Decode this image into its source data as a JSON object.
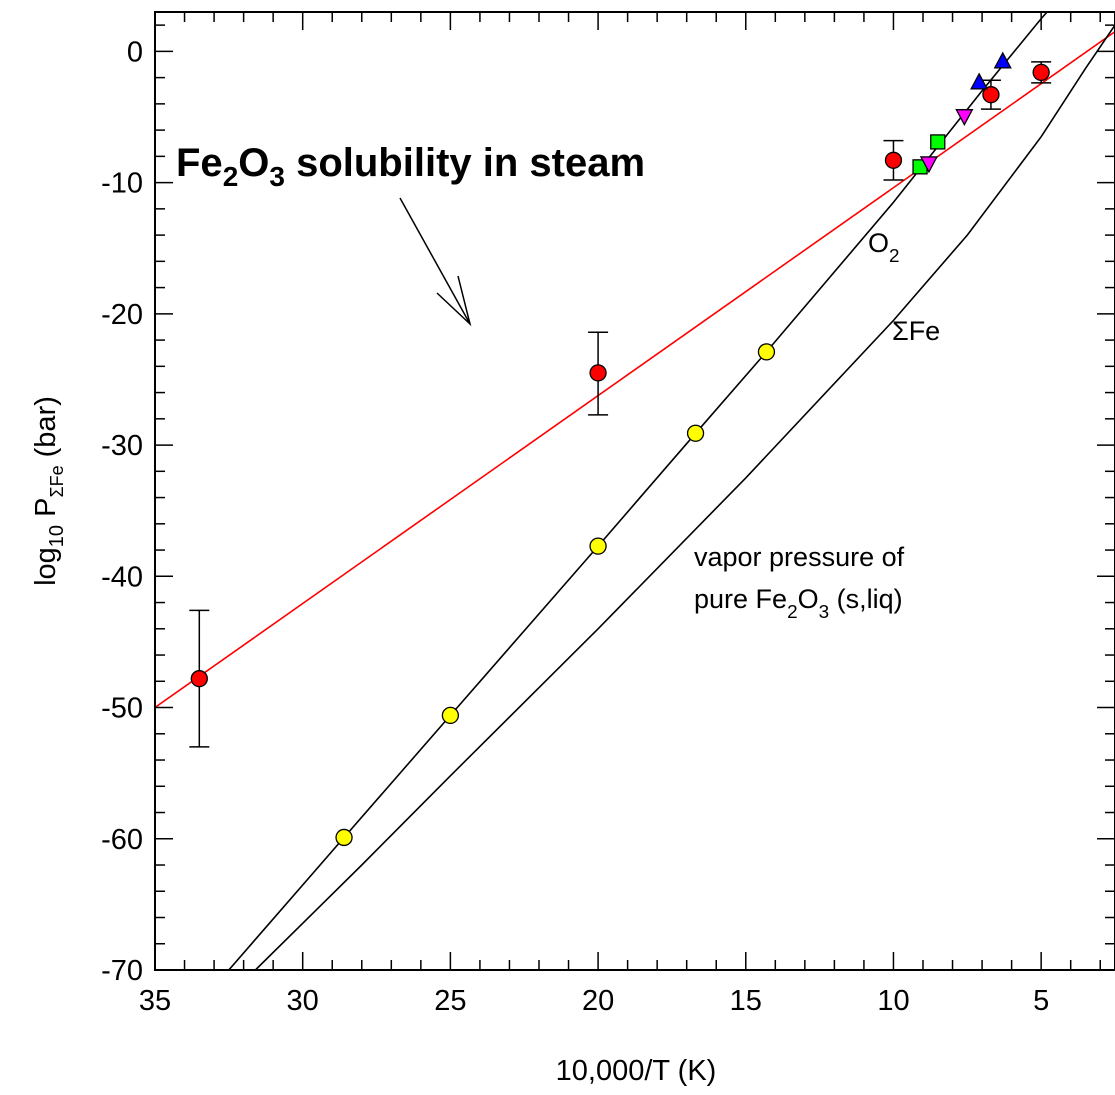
{
  "chart_data": {
    "type": "line",
    "title": "",
    "xlabel": "10,000/T (K)",
    "ylabel": {
      "base": "log",
      "base_sub": "10",
      "main": " P",
      "sub": "ΣFe",
      "unit": " (bar)"
    },
    "x_axis_reversed": true,
    "xlim": [
      35,
      2.5
    ],
    "ylim": [
      -70,
      3
    ],
    "x_ticks": [
      35,
      30,
      25,
      20,
      15,
      10,
      5
    ],
    "y_ticks": [
      0,
      -10,
      -20,
      -30,
      -40,
      -50,
      -60,
      -70
    ],
    "grid": false,
    "series": [
      {
        "name": "Fe2O3 solubility in steam",
        "style": "line-with-points",
        "color": "#ff0000",
        "marker": "circle",
        "marker_color": "#ff0000",
        "line": [
          [
            35,
            -50
          ],
          [
            2.5,
            1.5
          ]
        ],
        "points": [
          {
            "x": 33.5,
            "y": -47.8,
            "err_lo": -53.0,
            "err_hi": -42.6
          },
          {
            "x": 20.0,
            "y": -24.5,
            "err_lo": -27.7,
            "err_hi": -21.4
          },
          {
            "x": 10.0,
            "y": -8.3,
            "err_lo": -9.8,
            "err_hi": -6.8
          },
          {
            "x": 6.7,
            "y": -3.3,
            "err_lo": -4.4,
            "err_hi": -2.2
          },
          {
            "x": 5.0,
            "y": -1.6,
            "err_lo": -2.4,
            "err_hi": -0.8
          }
        ]
      },
      {
        "name": "O2",
        "style": "line-with-points",
        "color": "#000000",
        "marker": "circle",
        "marker_color": "#ffff00",
        "line": [
          [
            32.5,
            -70
          ],
          [
            28.6,
            -59.9
          ],
          [
            25.0,
            -50.6
          ],
          [
            20.0,
            -37.7
          ],
          [
            16.7,
            -29.1
          ],
          [
            14.3,
            -22.9
          ],
          [
            10.0,
            -11.5
          ],
          [
            7.0,
            -3.0
          ],
          [
            5.0,
            2.5
          ],
          [
            4.8,
            3.0
          ]
        ],
        "points": [
          {
            "x": 28.6,
            "y": -59.9
          },
          {
            "x": 25.0,
            "y": -50.6
          },
          {
            "x": 20.0,
            "y": -37.7
          },
          {
            "x": 16.7,
            "y": -29.1
          },
          {
            "x": 14.3,
            "y": -22.9
          }
        ]
      },
      {
        "name": "ΣFe",
        "style": "line",
        "color": "#000000",
        "line": [
          [
            31.6,
            -70
          ],
          [
            28.0,
            -62.0
          ],
          [
            25.0,
            -55.2
          ],
          [
            20.0,
            -44.0
          ],
          [
            15.0,
            -32.5
          ],
          [
            10.0,
            -20.5
          ],
          [
            7.5,
            -14.0
          ],
          [
            5.0,
            -6.5
          ],
          [
            3.5,
            -1.3
          ],
          [
            2.5,
            2.0
          ]
        ]
      },
      {
        "name": "blue triangles",
        "style": "points",
        "marker": "triangle-up",
        "marker_color": "#0000ff",
        "points": [
          {
            "x": 7.1,
            "y": -2.4
          },
          {
            "x": 6.3,
            "y": -0.8
          }
        ]
      },
      {
        "name": "green squares",
        "style": "points",
        "marker": "square",
        "marker_color": "#00ff00",
        "points": [
          {
            "x": 9.1,
            "y": -8.8
          },
          {
            "x": 8.5,
            "y": -6.9
          }
        ]
      },
      {
        "name": "magenta triangles",
        "style": "points",
        "marker": "triangle-down",
        "marker_color": "#ff00ff",
        "points": [
          {
            "x": 8.8,
            "y": -8.5
          },
          {
            "x": 7.6,
            "y": -4.9
          }
        ]
      }
    ],
    "annotations": [
      {
        "id": "title",
        "parts": [
          {
            "t": "Fe"
          },
          {
            "t": "2",
            "sub": true
          },
          {
            "t": "O"
          },
          {
            "t": "3",
            "sub": true
          },
          {
            "t": " solubility in steam"
          }
        ]
      },
      {
        "id": "o2",
        "parts": [
          {
            "t": "O"
          },
          {
            "t": "2",
            "sub": true
          }
        ]
      },
      {
        "id": "sfe",
        "parts": [
          {
            "t": "ΣFe"
          }
        ]
      },
      {
        "id": "vp1",
        "parts": [
          {
            "t": "vapor pressure of"
          }
        ]
      },
      {
        "id": "vp2",
        "parts": [
          {
            "t": "pure Fe"
          },
          {
            "t": "2",
            "sub": true
          },
          {
            "t": "O"
          },
          {
            "t": "3",
            "sub": true
          },
          {
            "t": " (s,liq)"
          }
        ]
      }
    ]
  }
}
